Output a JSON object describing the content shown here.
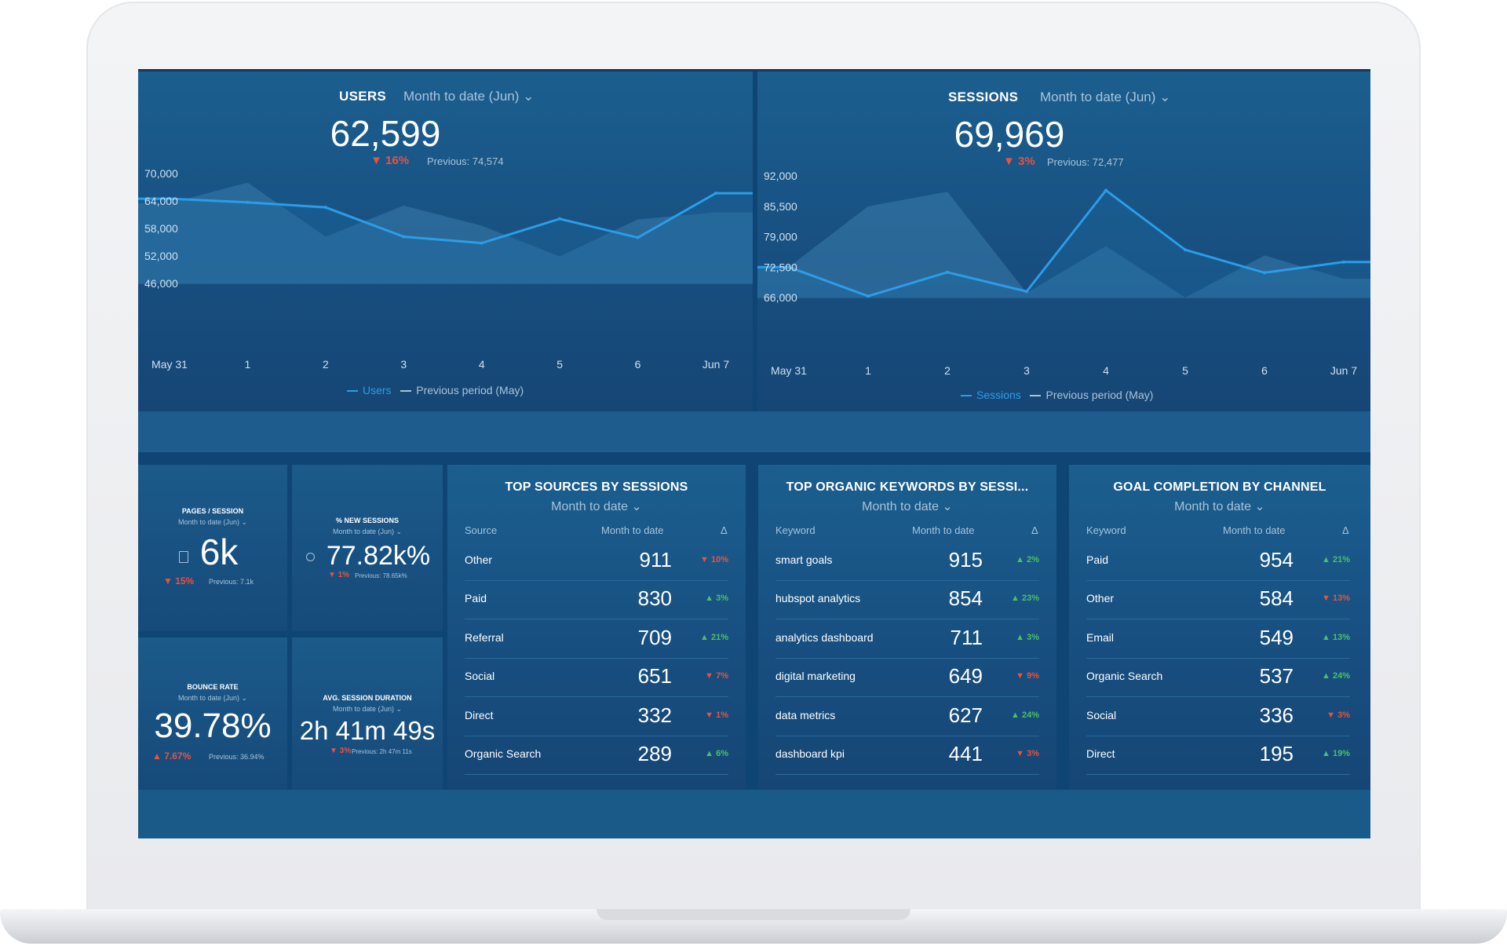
{
  "users": {
    "title": "USERS",
    "period": "Month to date (Jun) ⌄",
    "value": "62,599",
    "delta": "▼ 16%",
    "previous": "Previous: 74,574",
    "y_ticks": [
      "70,000",
      "64,000",
      "58,000",
      "52,000",
      "46,000"
    ],
    "x_ticks": [
      "May 31",
      "1",
      "2",
      "3",
      "4",
      "5",
      "6",
      "Jun 7"
    ],
    "legend_current": "Users",
    "legend_previous": "Previous period (May)"
  },
  "sessions": {
    "title": "SESSIONS",
    "period": "Month to date (Jun) ⌄",
    "value": "69,969",
    "delta": "▼ 3%",
    "previous": "Previous: 72,477",
    "y_ticks": [
      "92,000",
      "85,500",
      "79,000",
      "72,500",
      "66,000"
    ],
    "x_ticks": [
      "May 31",
      "1",
      "2",
      "3",
      "4",
      "5",
      "6",
      "Jun 7"
    ],
    "legend_current": "Sessions",
    "legend_previous": "Previous period (May)"
  },
  "chart_data": [
    {
      "type": "line",
      "title": "USERS",
      "x": [
        "May 31",
        "1",
        "2",
        "3",
        "4",
        "5",
        "6",
        "Jun 7"
      ],
      "ylim": [
        46000,
        70000
      ],
      "series": [
        {
          "name": "Users",
          "values": [
            64500,
            63700,
            62600,
            56200,
            54800,
            60100,
            56000,
            65700
          ]
        },
        {
          "name": "Previous period (May)",
          "values": [
            63500,
            68000,
            56200,
            63000,
            58600,
            51900,
            60000,
            61500
          ]
        }
      ]
    },
    {
      "type": "line",
      "title": "SESSIONS",
      "x": [
        "May 31",
        "1",
        "2",
        "3",
        "4",
        "5",
        "6",
        "Jun 7"
      ],
      "ylim": [
        66000,
        92000
      ],
      "series": [
        {
          "name": "Sessions",
          "values": [
            72500,
            66300,
            71400,
            67300,
            88900,
            76200,
            71300,
            73600
          ]
        },
        {
          "name": "Previous period (May)",
          "values": [
            72500,
            85500,
            88600,
            67000,
            77000,
            66000,
            75000,
            70000
          ]
        }
      ]
    }
  ],
  "kpis": {
    "pages_session": {
      "title": "PAGES / SESSION",
      "period": "Month to date (Jun) ⌄",
      "value": "6k",
      "delta": "▼ 15%",
      "previous": "Previous: 7.1k"
    },
    "new_sessions": {
      "title": "% NEW SESSIONS",
      "period": "Month to date (Jun) ⌄",
      "value": "77.82k%",
      "delta": "▼ 1%",
      "previous": "Previous: 78.65k%"
    },
    "bounce_rate": {
      "title": "BOUNCE RATE",
      "period": "Month to date (Jun) ⌄",
      "value": "39.78%",
      "delta": "▲ 7.67%",
      "previous": "Previous: 36.94%"
    },
    "avg_session": {
      "title": "AVG. SESSION DURATION",
      "period": "Month to date (Jun) ⌄",
      "value": "2h 41m 49s",
      "delta": "▼ 3%",
      "previous": "Previous: 2h 47m 11s"
    }
  },
  "tables": {
    "sources": {
      "title": "TOP SOURCES BY SESSIONS",
      "period": "Month to date ⌄",
      "headers": [
        "Source",
        "Month to date",
        "Δ"
      ],
      "rows": [
        {
          "name": "Other",
          "value": "911",
          "delta": "▼ 10%",
          "dir": "dn"
        },
        {
          "name": "Paid",
          "value": "830",
          "delta": "▲ 3%",
          "dir": "up"
        },
        {
          "name": "Referral",
          "value": "709",
          "delta": "▲ 21%",
          "dir": "up"
        },
        {
          "name": "Social",
          "value": "651",
          "delta": "▼ 7%",
          "dir": "dn"
        },
        {
          "name": "Direct",
          "value": "332",
          "delta": "▼ 1%",
          "dir": "dn"
        },
        {
          "name": "Organic Search",
          "value": "289",
          "delta": "▲ 6%",
          "dir": "up"
        }
      ]
    },
    "keywords": {
      "title": "TOP ORGANIC KEYWORDS BY SESSI...",
      "period": "Month to date ⌄",
      "headers": [
        "Keyword",
        "Month to date",
        "Δ"
      ],
      "rows": [
        {
          "name": "smart goals",
          "value": "915",
          "delta": "▲ 2%",
          "dir": "up"
        },
        {
          "name": "hubspot analytics",
          "value": "854",
          "delta": "▲ 23%",
          "dir": "up"
        },
        {
          "name": "analytics dashboard",
          "value": "711",
          "delta": "▲ 3%",
          "dir": "up"
        },
        {
          "name": "digital marketing",
          "value": "649",
          "delta": "▼ 9%",
          "dir": "dn"
        },
        {
          "name": "data metrics",
          "value": "627",
          "delta": "▲ 24%",
          "dir": "up"
        },
        {
          "name": "dashboard kpi",
          "value": "441",
          "delta": "▼ 3%",
          "dir": "dn"
        }
      ]
    },
    "goals": {
      "title": "GOAL COMPLETION BY CHANNEL",
      "period": "Month to date ⌄",
      "headers": [
        "Keyword",
        "Month to date",
        "Δ"
      ],
      "rows": [
        {
          "name": "Paid",
          "value": "954",
          "delta": "▲ 21%",
          "dir": "up"
        },
        {
          "name": "Other",
          "value": "584",
          "delta": "▼ 13%",
          "dir": "dn"
        },
        {
          "name": "Email",
          "value": "549",
          "delta": "▲ 13%",
          "dir": "up"
        },
        {
          "name": "Organic Search",
          "value": "537",
          "delta": "▲ 24%",
          "dir": "up"
        },
        {
          "name": "Social",
          "value": "336",
          "delta": "▼ 3%",
          "dir": "dn"
        },
        {
          "name": "Direct",
          "value": "195",
          "delta": "▲ 19%",
          "dir": "up"
        }
      ]
    }
  },
  "colors": {
    "screen_bg": "#0f4574",
    "line_current": "#2b9de8",
    "area_previous": "#3a7cab",
    "delta_down": "#e8533f",
    "delta_up": "#4cc068"
  }
}
